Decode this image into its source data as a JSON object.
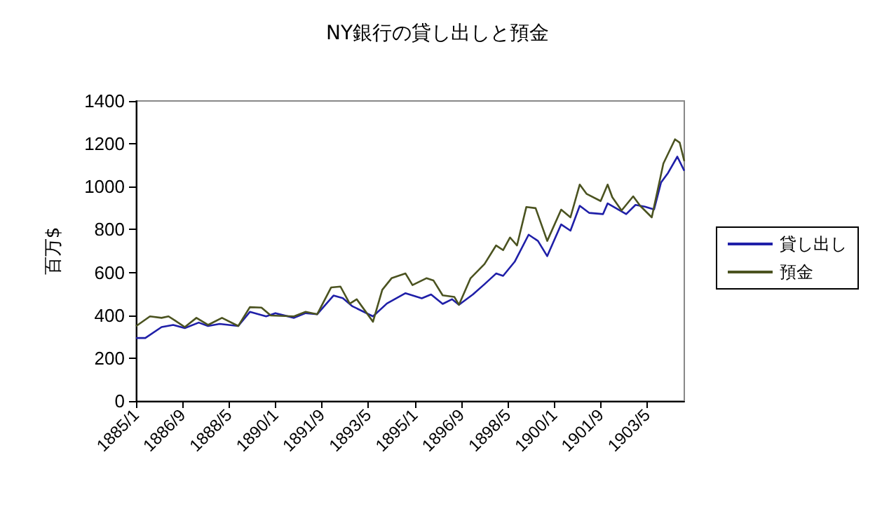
{
  "chart_data": {
    "type": "line",
    "title": "NY銀行の貸し出しと預金",
    "ylabel": "百万$",
    "xlim": [
      "1885-01",
      "1904-09"
    ],
    "xticks": [
      {
        "value": "1885-01",
        "label": "1885/1"
      },
      {
        "value": "1886-09",
        "label": "1886/9"
      },
      {
        "value": "1888-05",
        "label": "1888/5"
      },
      {
        "value": "1890-01",
        "label": "1890/1"
      },
      {
        "value": "1891-09",
        "label": "1891/9"
      },
      {
        "value": "1893-05",
        "label": "1893/5"
      },
      {
        "value": "1895-01",
        "label": "1895/1"
      },
      {
        "value": "1896-09",
        "label": "1896/9"
      },
      {
        "value": "1898-05",
        "label": "1898/5"
      },
      {
        "value": "1900-01",
        "label": "1900/1"
      },
      {
        "value": "1901-09",
        "label": "1901/9"
      },
      {
        "value": "1903-05",
        "label": "1903/5"
      }
    ],
    "ylim": [
      0,
      1400
    ],
    "yticks": [
      0,
      200,
      400,
      600,
      800,
      1000,
      1200,
      1400
    ],
    "grid": false,
    "legend": "right",
    "series": [
      {
        "name": "貸し出し",
        "color": "#1f1fa8",
        "x": [
          "1885-01",
          "1885-05",
          "1885-12",
          "1886-05",
          "1886-10",
          "1887-04",
          "1887-08",
          "1888-01",
          "1888-09",
          "1889-02",
          "1889-09",
          "1890-01",
          "1890-09",
          "1891-02",
          "1891-07",
          "1892-02",
          "1892-06",
          "1892-10",
          "1893-07",
          "1894-01",
          "1894-09",
          "1895-04",
          "1895-08",
          "1896-01",
          "1896-05",
          "1896-08",
          "1897-02",
          "1897-07",
          "1897-12",
          "1898-03",
          "1898-08",
          "1899-02",
          "1899-06",
          "1899-10",
          "1900-04",
          "1900-08",
          "1900-12",
          "1901-04",
          "1901-10",
          "1901-12",
          "1902-08",
          "1902-12",
          "1903-04",
          "1903-08",
          "1903-11",
          "1904-02",
          "1904-06",
          "1904-09"
        ],
        "values": [
          294,
          294,
          345,
          355,
          340,
          366,
          350,
          360,
          350,
          416,
          395,
          410,
          388,
          410,
          405,
          492,
          480,
          443,
          395,
          455,
          503,
          479,
          497,
          453,
          475,
          449,
          497,
          545,
          595,
          584,
          650,
          776,
          747,
          676,
          824,
          795,
          911,
          878,
          872,
          922,
          872,
          915,
          907,
          894,
          1020,
          1064,
          1140,
          1074
        ]
      },
      {
        "name": "預金",
        "color": "#4b5320",
        "x": [
          "1885-01",
          "1885-07",
          "1885-12",
          "1886-03",
          "1886-06",
          "1886-10",
          "1887-03",
          "1887-08",
          "1888-02",
          "1888-09",
          "1889-02",
          "1889-07",
          "1889-11",
          "1890-09",
          "1891-02",
          "1891-07",
          "1892-01",
          "1892-05",
          "1892-09",
          "1892-12",
          "1893-07",
          "1893-11",
          "1894-03",
          "1894-09",
          "1894-12",
          "1895-06",
          "1895-09",
          "1896-01",
          "1896-06",
          "1896-08",
          "1897-01",
          "1897-07",
          "1897-12",
          "1898-03",
          "1898-06",
          "1898-09",
          "1899-01",
          "1899-05",
          "1899-10",
          "1900-04",
          "1900-08",
          "1900-12",
          "1901-03",
          "1901-09",
          "1901-12",
          "1902-02",
          "1902-06",
          "1902-11",
          "1903-02",
          "1903-07",
          "1903-12",
          "1904-05",
          "1904-07",
          "1904-09"
        ],
        "values": [
          349,
          395,
          388,
          395,
          374,
          345,
          388,
          355,
          388,
          350,
          438,
          436,
          399,
          395,
          416,
          405,
          530,
          534,
          454,
          475,
          370,
          519,
          573,
          595,
          541,
          573,
          563,
          493,
          486,
          449,
          573,
          639,
          726,
          704,
          763,
          726,
          905,
          900,
          747,
          893,
          857,
          1010,
          966,
          933,
          1010,
          951,
          889,
          955,
          911,
          857,
          1108,
          1221,
          1206,
          1119
        ]
      }
    ]
  }
}
